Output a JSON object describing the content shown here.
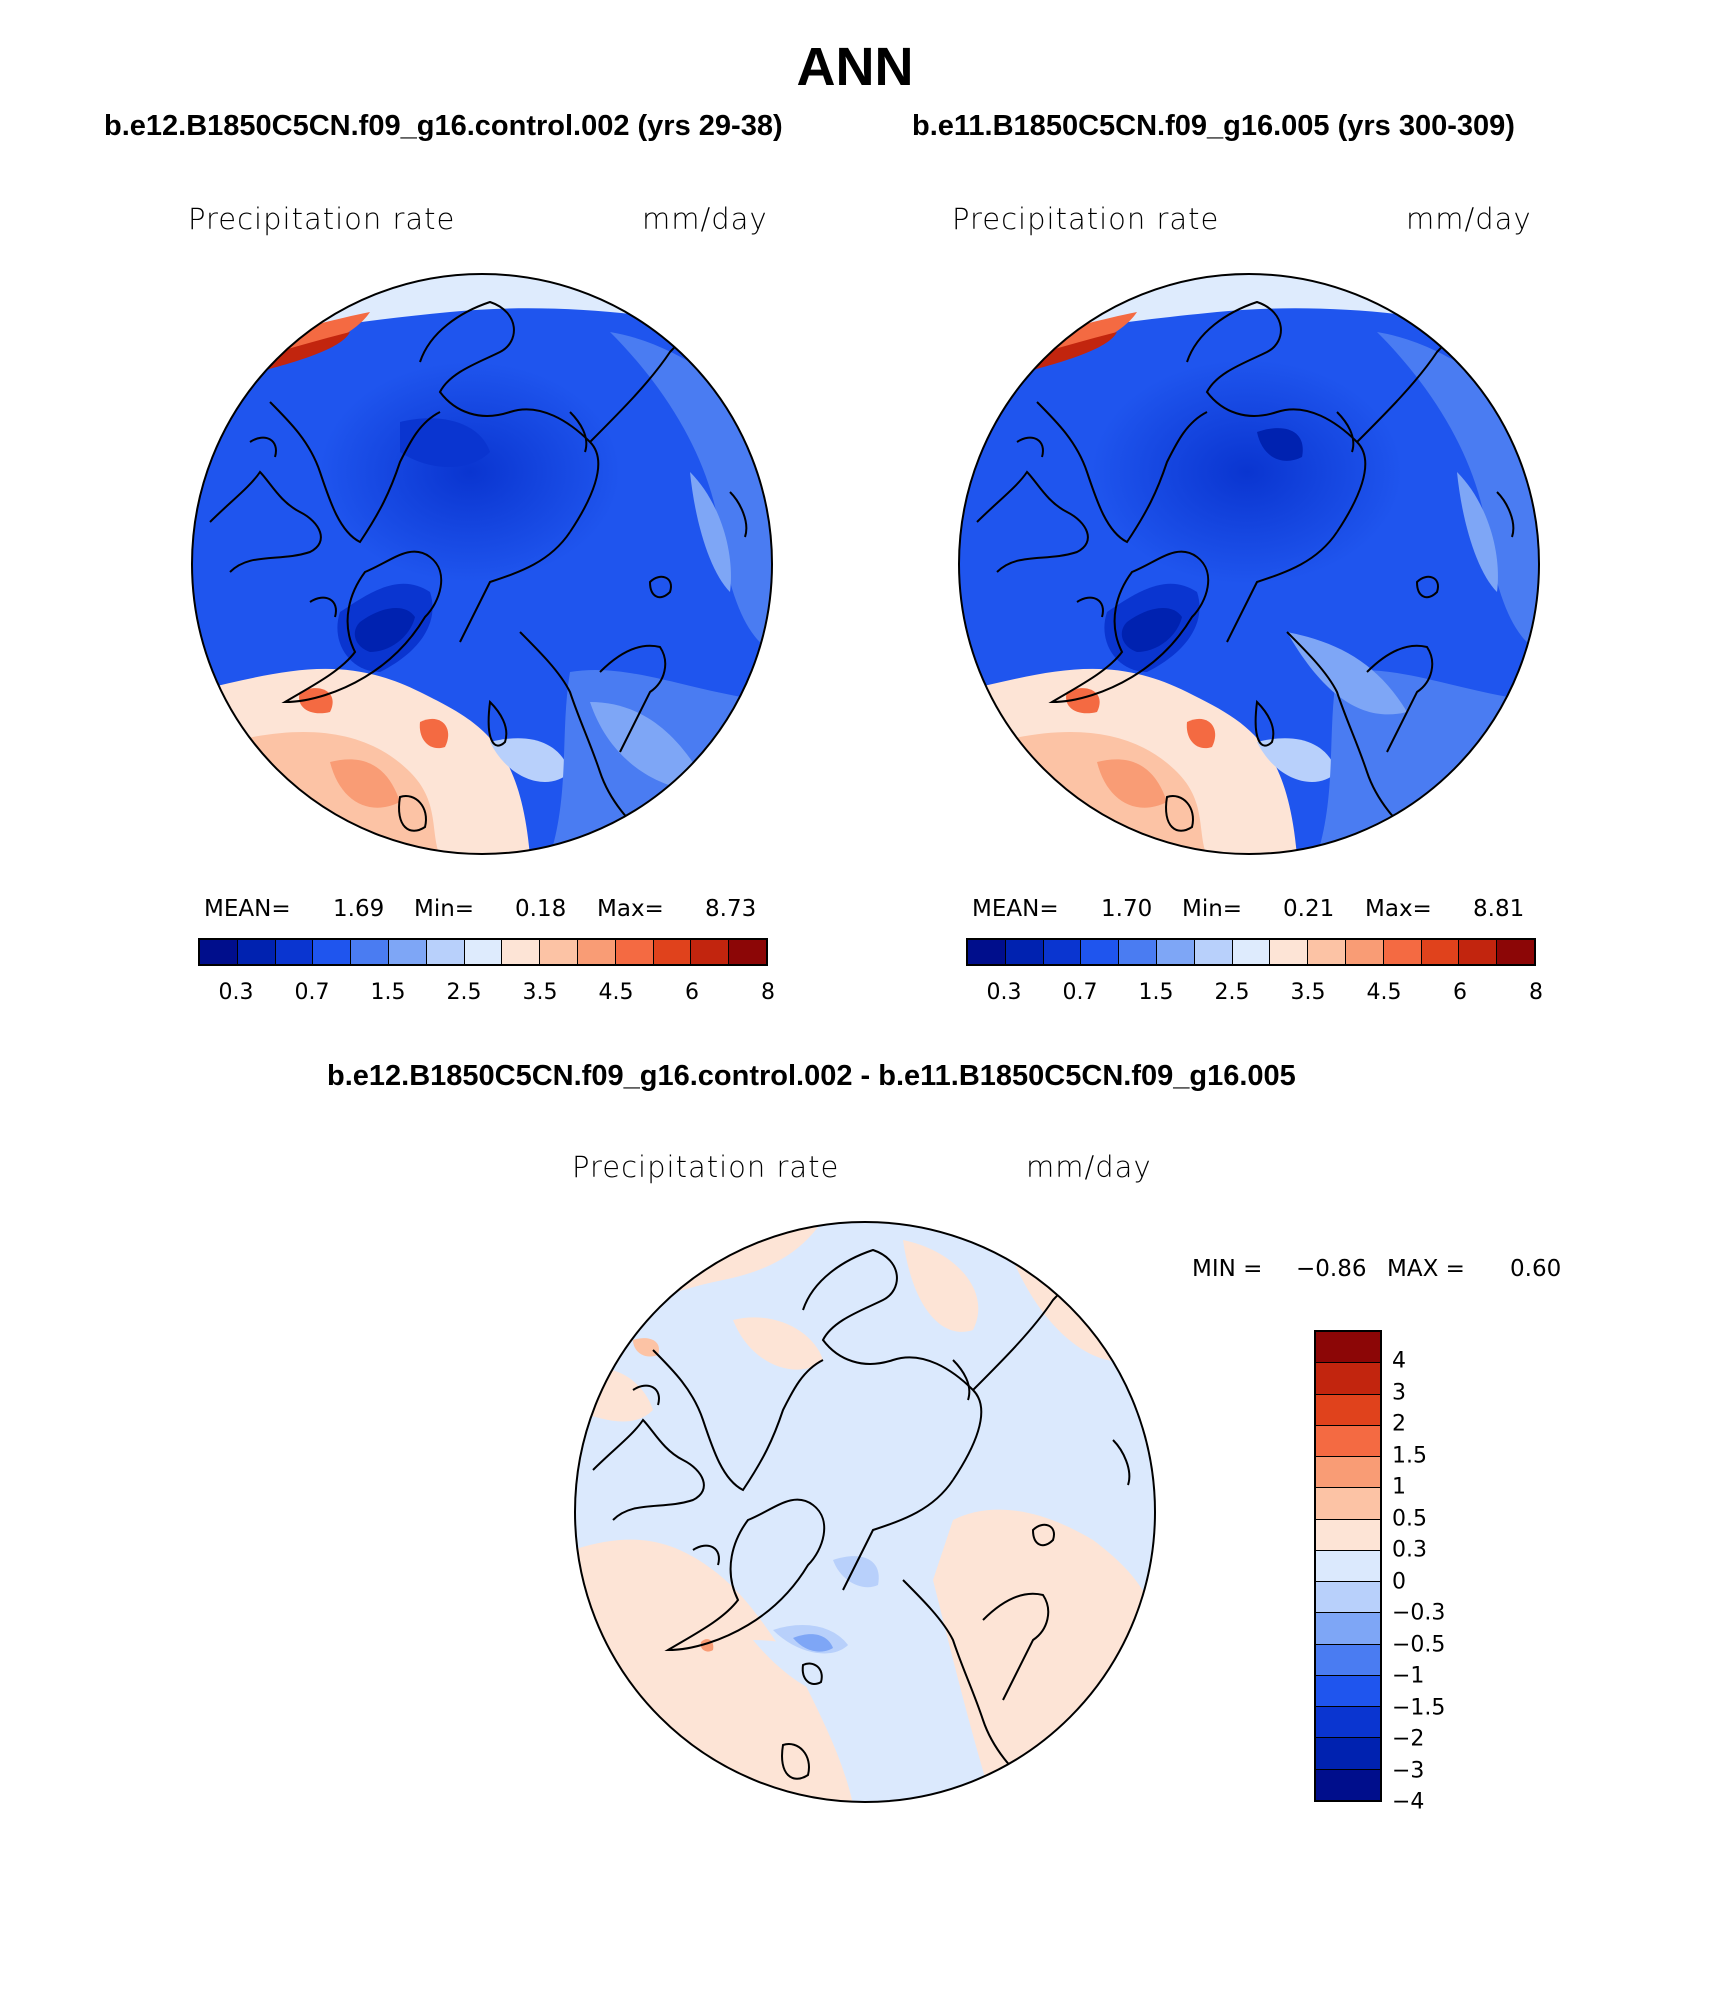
{
  "title": "ANN",
  "panels": [
    {
      "case_title": "b.e12.B1850C5CN.f09_g16.control.002 (yrs 29-38)",
      "variable": "Precipitation rate",
      "units": "mm/day",
      "stats": {
        "mean_label": "MEAN=",
        "mean": "1.69",
        "min_label": "Min=",
        "min": "0.18",
        "max_label": "Max=",
        "max": "8.73"
      },
      "colorbar_ticks": [
        "0.3",
        "0.7",
        "1.5",
        "2.5",
        "3.5",
        "4.5",
        "6",
        "8"
      ]
    },
    {
      "case_title": "b.e11.B1850C5CN.f09_g16.005 (yrs 300-309)",
      "variable": "Precipitation rate",
      "units": "mm/day",
      "stats": {
        "mean_label": "MEAN=",
        "mean": "1.70",
        "min_label": "Min=",
        "min": "0.21",
        "max_label": "Max=",
        "max": "8.81"
      },
      "colorbar_ticks": [
        "0.3",
        "0.7",
        "1.5",
        "2.5",
        "3.5",
        "4.5",
        "6",
        "8"
      ]
    }
  ],
  "diff": {
    "case_title": "b.e12.B1850C5CN.f09_g16.control.002 - b.e11.B1850C5CN.f09_g16.005",
    "variable": "Precipitation rate",
    "units": "mm/day",
    "stats": {
      "min_label": "MIN =",
      "min": "−0.86",
      "max_label": "MAX =",
      "max": "0.60"
    },
    "colorbar_ticks": [
      "4",
      "3",
      "2",
      "1.5",
      "1",
      "0.5",
      "0.3",
      "0",
      "−0.3",
      "−0.5",
      "−1",
      "−1.5",
      "−2",
      "−3",
      "−4"
    ]
  },
  "colors": {
    "seq": [
      "#000e8c",
      "#0022b0",
      "#0a35d0",
      "#1f55ee",
      "#4a7cf2",
      "#7ea6f6",
      "#b8d0fb",
      "#deebfd",
      "#fde4d6",
      "#fcc3a5",
      "#f99c75",
      "#f46a42",
      "#e0421c",
      "#c2250e",
      "#8c0606"
    ],
    "div": [
      "#8c0606",
      "#c2250e",
      "#e0421c",
      "#f46a42",
      "#f99c75",
      "#fcc3a5",
      "#fde4d6",
      "#dbe9fd",
      "#b8d0fb",
      "#7ea6f6",
      "#4a7cf2",
      "#1f55ee",
      "#0a35d0",
      "#0022b0",
      "#000e8c"
    ]
  }
}
